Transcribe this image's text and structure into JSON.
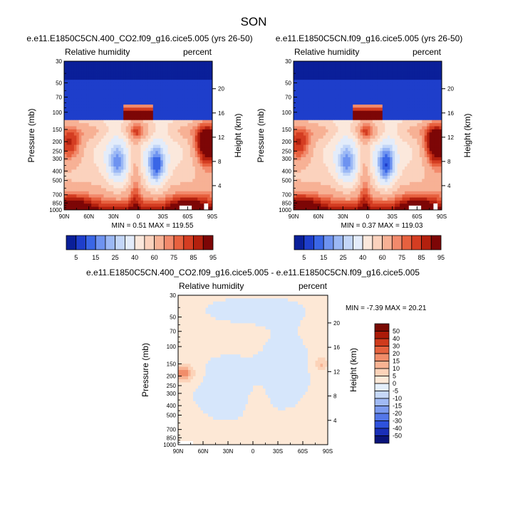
{
  "page": {
    "main_title": "SON"
  },
  "chart_data": [
    {
      "type": "heatmap",
      "id": "panel-left",
      "title": "e.e11.E1850C5CN.400_CO2.f09_g16.cice5.005 (yrs 26-50)",
      "left_label": "Relative humidity",
      "right_label": "percent",
      "ylabel": "Pressure (mb)",
      "y2label": "Height (km)",
      "x_ticks": [
        "90N",
        "60N",
        "30N",
        "0",
        "30S",
        "60S",
        "90S"
      ],
      "xlim": [
        90,
        -90
      ],
      "y_ticks": [
        "30",
        "50",
        "70",
        "100",
        "150",
        "200",
        "250",
        "300",
        "400",
        "500",
        "700",
        "850",
        "1000"
      ],
      "ylim": [
        1000,
        30
      ],
      "y2_ticks": [
        "20",
        "16",
        "12",
        "8",
        "4"
      ],
      "stats": "MIN =   0.51  MAX = 119.55",
      "palette": [
        "#0a1f99",
        "#1e3ecb",
        "#3a66e6",
        "#6e93f0",
        "#9bb8f5",
        "#c3d6f8",
        "#e3ecfa",
        "#fbe8dc",
        "#fbd2bd",
        "#f7b195",
        "#f28a6c",
        "#e7613f",
        "#d43d22",
        "#b3200e",
        "#7d0606"
      ],
      "levels": [
        "5",
        "15",
        "25",
        "40",
        "60",
        "75",
        "85",
        "95"
      ],
      "levels_all": [
        5,
        10,
        15,
        20,
        25,
        30,
        40,
        50,
        60,
        70,
        75,
        80,
        85,
        90,
        95
      ]
    },
    {
      "type": "heatmap",
      "id": "panel-right",
      "title": "e.e11.E1850C5CN.f09_g16.cice5.005 (yrs 26-50)",
      "left_label": "Relative humidity",
      "right_label": "percent",
      "ylabel": "Pressure (mb)",
      "y2label": "Height (km)",
      "x_ticks": [
        "90N",
        "60N",
        "30N",
        "0",
        "30S",
        "60S",
        "90S"
      ],
      "xlim": [
        90,
        -90
      ],
      "y_ticks": [
        "30",
        "50",
        "70",
        "100",
        "150",
        "200",
        "250",
        "300",
        "400",
        "500",
        "700",
        "850",
        "1000"
      ],
      "ylim": [
        1000,
        30
      ],
      "y2_ticks": [
        "20",
        "16",
        "12",
        "8",
        "4"
      ],
      "stats": "MIN =   0.37  MAX = 119.03",
      "palette": [
        "#0a1f99",
        "#1e3ecb",
        "#3a66e6",
        "#6e93f0",
        "#9bb8f5",
        "#c3d6f8",
        "#e3ecfa",
        "#fbe8dc",
        "#fbd2bd",
        "#f7b195",
        "#f28a6c",
        "#e7613f",
        "#d43d22",
        "#b3200e",
        "#7d0606"
      ],
      "levels": [
        "5",
        "15",
        "25",
        "40",
        "60",
        "75",
        "85",
        "95"
      ],
      "levels_all": [
        5,
        10,
        15,
        20,
        25,
        30,
        40,
        50,
        60,
        70,
        75,
        80,
        85,
        90,
        95
      ]
    },
    {
      "type": "heatmap",
      "id": "panel-diff",
      "title": "e.e11.E1850C5CN.400_CO2.f09_g16.cice5.005 - e.e11.E1850C5CN.f09_g16.cice5.005",
      "left_label": "Relative humidity",
      "right_label": "percent",
      "ylabel": "Pressure (mb)",
      "y2label": "Height (km)",
      "x_ticks": [
        "90N",
        "60N",
        "30N",
        "0",
        "30S",
        "60S",
        "90S"
      ],
      "xlim": [
        90,
        -90
      ],
      "y_ticks": [
        "30",
        "50",
        "70",
        "100",
        "150",
        "200",
        "250",
        "300",
        "400",
        "500",
        "700",
        "850",
        "1000"
      ],
      "ylim": [
        1000,
        30
      ],
      "y2_ticks": [
        "20",
        "16",
        "12",
        "8",
        "4"
      ],
      "stats": "MIN =  -7.39  MAX =  20.21",
      "palette": [
        "#0a147a",
        "#1a2fb8",
        "#2e52dd",
        "#5477e8",
        "#7b9aef",
        "#a0baf5",
        "#c6d8f8",
        "#e4effb",
        "#fde9d8",
        "#fcd3b9",
        "#f8b393",
        "#f18d6a",
        "#e5623e",
        "#cf3b1c",
        "#ab1b08",
        "#7a0a03"
      ],
      "levels": [
        "50",
        "40",
        "30",
        "20",
        "15",
        "10",
        "5",
        "0",
        "-5",
        "-10",
        "-15",
        "-20",
        "-30",
        "-40",
        "-50"
      ]
    }
  ]
}
